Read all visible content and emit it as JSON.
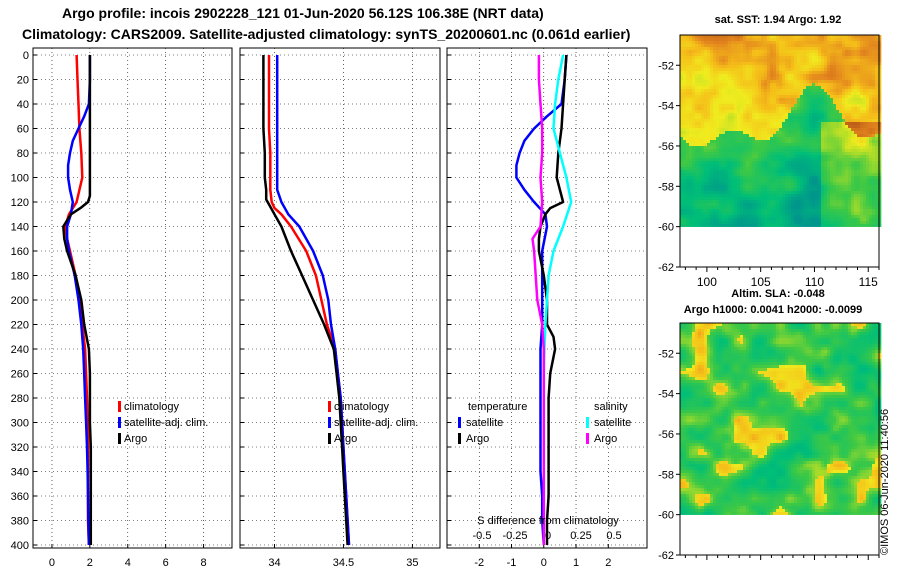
{
  "titles": {
    "line1": "Argo profile: incois 2902228_121 01-Jun-2020 56.12S 106.38E (NRT data)",
    "line2": "Climatology: CARS2009. Satellite-adjusted climatology: synTS_20200601.nc (0.061d earlier)"
  },
  "watermark": "©IMOS 06-Jun-2020 11:40:56",
  "colors": {
    "climatology": "#ff0000",
    "satellite": "#0000ff",
    "argo": "#000000",
    "sal_satellite": "#00ffff",
    "sal_satellite_diff": "#ff00ff",
    "map_land_blank": "#ffffff"
  },
  "chart_data": [
    {
      "type": "line",
      "name": "temperature-profile",
      "xlabel": "",
      "ylabel": "",
      "xlim": [
        -1,
        9.5
      ],
      "ylim": [
        400,
        0
      ],
      "xticks": [
        "0",
        "2",
        "4",
        "6",
        "8"
      ],
      "yticks": [
        "0",
        "20",
        "40",
        "60",
        "80",
        "100",
        "120",
        "140",
        "160",
        "180",
        "200",
        "220",
        "240",
        "260",
        "280",
        "300",
        "320",
        "340",
        "360",
        "380",
        "400"
      ],
      "legend": [
        "climatology",
        "satellite-adj. clim.",
        "Argo"
      ],
      "series": [
        {
          "name": "climatology",
          "depth": [
            0,
            20,
            40,
            60,
            80,
            100,
            120,
            130,
            140,
            150,
            160,
            180,
            200,
            220,
            240,
            260,
            280,
            300,
            320,
            340,
            360,
            380,
            400
          ],
          "values": [
            1.3,
            1.35,
            1.4,
            1.45,
            1.55,
            1.6,
            1.3,
            0.9,
            0.7,
            0.8,
            0.95,
            1.25,
            1.45,
            1.6,
            1.75,
            1.8,
            1.85,
            1.9,
            1.9,
            1.9,
            1.9,
            1.9,
            1.95
          ]
        },
        {
          "name": "satellite-adj. clim.",
          "depth": [
            0,
            20,
            40,
            50,
            60,
            70,
            80,
            90,
            100,
            110,
            120,
            130,
            140,
            150,
            160,
            180,
            200,
            220,
            240,
            260,
            280,
            300,
            320,
            340,
            360,
            380,
            400
          ],
          "values": [
            2.0,
            2.0,
            1.95,
            1.7,
            1.4,
            1.1,
            0.95,
            0.85,
            0.85,
            0.95,
            1.1,
            1.0,
            0.8,
            0.8,
            0.9,
            1.2,
            1.4,
            1.55,
            1.65,
            1.7,
            1.75,
            1.8,
            1.85,
            1.88,
            1.9,
            1.92,
            1.95
          ]
        },
        {
          "name": "Argo",
          "depth": [
            0,
            20,
            40,
            60,
            80,
            100,
            110,
            115,
            120,
            125,
            130,
            135,
            140,
            150,
            160,
            180,
            200,
            220,
            240,
            260,
            280,
            300,
            320,
            340,
            360,
            380,
            400
          ],
          "values": [
            2.0,
            2.0,
            2.0,
            2.0,
            2.0,
            2.0,
            2.0,
            2.0,
            1.9,
            1.5,
            1.0,
            0.8,
            0.6,
            0.65,
            0.8,
            1.25,
            1.55,
            1.7,
            1.95,
            2.0,
            2.0,
            2.0,
            2.05,
            2.05,
            2.05,
            2.05,
            2.05
          ]
        }
      ]
    },
    {
      "type": "line",
      "name": "salinity-profile",
      "xlabel": "",
      "ylabel": "",
      "xlim": [
        33.75,
        35.2
      ],
      "ylim": [
        400,
        0
      ],
      "xticks": [
        "34",
        "34.5",
        "35"
      ],
      "legend": [
        "climatology",
        "satellite-adj. clim.",
        "Argo"
      ],
      "series": [
        {
          "name": "climatology",
          "depth": [
            0,
            20,
            40,
            60,
            80,
            100,
            110,
            120,
            125,
            130,
            140,
            160,
            180,
            200,
            220,
            240,
            260,
            280,
            300,
            320,
            340,
            360,
            380,
            400
          ],
          "values": [
            33.96,
            33.96,
            33.96,
            33.96,
            33.97,
            33.97,
            33.97,
            33.98,
            34.0,
            34.05,
            34.12,
            34.23,
            34.3,
            34.34,
            34.38,
            34.44,
            34.46,
            34.48,
            34.49,
            34.5,
            34.51,
            34.52,
            34.53,
            34.54
          ]
        },
        {
          "name": "satellite-adj. clim.",
          "depth": [
            0,
            20,
            40,
            60,
            80,
            100,
            110,
            120,
            130,
            140,
            160,
            180,
            200,
            220,
            240,
            260,
            280,
            300,
            320,
            340,
            360,
            380,
            400
          ],
          "values": [
            34.02,
            34.02,
            34.02,
            34.02,
            34.02,
            34.02,
            34.02,
            34.05,
            34.1,
            34.18,
            34.28,
            34.35,
            34.39,
            34.41,
            34.44,
            34.46,
            34.48,
            34.49,
            34.5,
            34.51,
            34.52,
            34.53,
            34.54
          ]
        },
        {
          "name": "Argo",
          "depth": [
            0,
            20,
            40,
            60,
            80,
            100,
            110,
            118,
            122,
            130,
            140,
            160,
            180,
            200,
            220,
            240,
            260,
            280,
            300,
            320,
            340,
            360,
            380,
            400
          ],
          "values": [
            33.92,
            33.92,
            33.92,
            33.92,
            33.93,
            33.93,
            33.94,
            33.94,
            33.96,
            34.0,
            34.05,
            34.12,
            34.2,
            34.28,
            34.36,
            34.43,
            34.45,
            34.47,
            34.48,
            34.49,
            34.5,
            34.51,
            34.52,
            34.53
          ]
        }
      ]
    },
    {
      "type": "line",
      "name": "difference-profile",
      "xlabel": "S difference from climatology",
      "xlabel_ticks": [
        "-0.5",
        "-0.25",
        "0",
        "0.25",
        "0.5"
      ],
      "xlim": [
        -3,
        3.2
      ],
      "ylim": [
        400,
        0
      ],
      "xticks": [
        "-2",
        "-1",
        "0",
        "1",
        "2"
      ],
      "legend_groups": [
        {
          "title": "temperature",
          "items": [
            "satellite",
            "Argo"
          ]
        },
        {
          "title": "salinity",
          "items": [
            "satellite",
            "Argo"
          ]
        }
      ],
      "series": [
        {
          "name": "temperature satellite",
          "depth": [
            0,
            20,
            40,
            50,
            60,
            70,
            80,
            90,
            100,
            110,
            120,
            130,
            140,
            160,
            180,
            200,
            220,
            240,
            260,
            280,
            300,
            320,
            340,
            360,
            380,
            400
          ],
          "values": [
            0.7,
            0.65,
            0.55,
            0.1,
            -0.3,
            -0.6,
            -0.75,
            -0.85,
            -0.85,
            -0.6,
            -0.3,
            0.05,
            0.1,
            -0.05,
            -0.05,
            -0.05,
            -0.05,
            -0.1,
            -0.1,
            -0.1,
            -0.1,
            -0.1,
            -0.1,
            -0.05,
            -0.05,
            0
          ]
        },
        {
          "name": "temperature Argo",
          "depth": [
            0,
            20,
            40,
            60,
            80,
            100,
            110,
            120,
            125,
            130,
            140,
            150,
            160,
            180,
            200,
            220,
            230,
            240,
            260,
            280,
            300,
            320,
            340,
            360,
            380,
            400
          ],
          "values": [
            0.7,
            0.65,
            0.6,
            0.55,
            0.45,
            0.4,
            0.5,
            0.6,
            0.2,
            0.05,
            -0.1,
            -0.15,
            -0.15,
            0,
            0.1,
            0.1,
            0.3,
            0.35,
            0.2,
            0.15,
            0.15,
            0.15,
            0.15,
            0.15,
            0.1,
            0.1
          ]
        },
        {
          "name": "salinity satellite",
          "depth": [
            0,
            20,
            40,
            60,
            80,
            100,
            120,
            140,
            160,
            180,
            200,
            220,
            240,
            260,
            280,
            300,
            320,
            340,
            360,
            380,
            400
          ],
          "values": [
            0.6,
            0.45,
            0.35,
            0.3,
            0.5,
            0.7,
            0.85,
            0.6,
            0.3,
            0.15,
            0.1,
            0.05,
            0.02,
            0,
            0,
            0,
            0,
            0,
            0,
            0,
            0
          ]
        },
        {
          "name": "salinity Argo",
          "depth": [
            0,
            20,
            40,
            60,
            80,
            100,
            120,
            140,
            150,
            160,
            180,
            200,
            220,
            240,
            260,
            280,
            300,
            320,
            340,
            360,
            380,
            400
          ],
          "values": [
            -0.15,
            -0.15,
            -0.1,
            -0.05,
            -0.05,
            -0.1,
            -0.05,
            -0.1,
            -0.35,
            -0.3,
            -0.25,
            -0.2,
            -0.05,
            0,
            0,
            0,
            0,
            0,
            0,
            0,
            0,
            0
          ]
        }
      ]
    },
    {
      "type": "heatmap",
      "name": "sst-map",
      "title": "sat. SST: 1.94 Argo: 1.92",
      "xticks": [
        "100",
        "105",
        "110",
        "115"
      ],
      "yticks": [
        "-52",
        "-54",
        "-56",
        "-58",
        "-60",
        "-62"
      ],
      "xlim": [
        97.5,
        116
      ],
      "ylim": [
        -62,
        -50.5
      ],
      "argo_position": {
        "lon": 106.38,
        "lat": -56.12
      }
    },
    {
      "type": "heatmap",
      "name": "sla-map",
      "title": "Altim. SLA: -0.048",
      "subtitle": "Argo h1000: 0.0041 h2000: -0.0099",
      "yticks": [
        "-52",
        "-54",
        "-56",
        "-58",
        "-60",
        "-62"
      ],
      "xlim": [
        97.5,
        116
      ],
      "ylim": [
        -62,
        -50.5
      ]
    }
  ]
}
